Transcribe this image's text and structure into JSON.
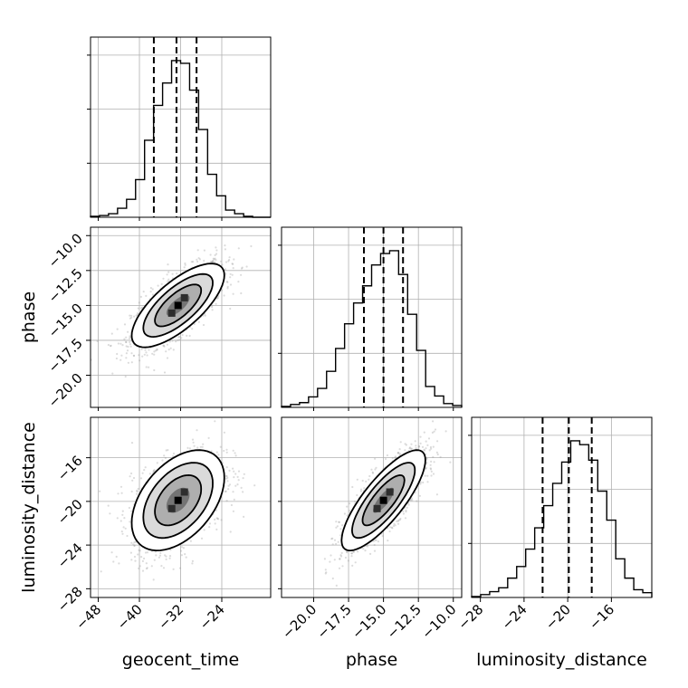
{
  "chart_data": {
    "type": "corner",
    "parameters": [
      "geocent_time",
      "phase",
      "luminosity_distance"
    ],
    "ranges": {
      "geocent_time": [
        -49.5,
        -14.5
      ],
      "phase": [
        -22.3,
        -9.4
      ],
      "luminosity_distance": [
        -28.8,
        -12.3
      ]
    },
    "ticks": {
      "geocent_time": [
        -48,
        -40,
        -32,
        -24
      ],
      "phase_y": [
        -10.0,
        -12.5,
        -15.0,
        -17.5,
        -20.0
      ],
      "phase_x": [
        -20.0,
        -17.5,
        -15.0,
        -12.5,
        -10.0
      ],
      "luminosity_distance": [
        -28,
        -24,
        -20,
        -16
      ]
    },
    "tick_labels": {
      "geocent_time": [
        "−48",
        "−40",
        "−32",
        "−24"
      ],
      "phase_y": [
        "−10.0",
        "−12.5",
        "−15.0",
        "−17.5",
        "−20.0"
      ],
      "phase_x": [
        "−20.0",
        "−17.5",
        "−15.0",
        "−12.5",
        "−10.0"
      ],
      "luminosity_distance": [
        "−28",
        "−24",
        "−20",
        "−16"
      ]
    },
    "axis_labels": {
      "geocent_time": "geocent_time",
      "phase": "phase",
      "luminosity_distance": "luminosity_distance"
    },
    "marginals": {
      "geocent_time": {
        "bin_edges": [
          -49.5,
          -47.75,
          -46,
          -44.25,
          -42.5,
          -40.75,
          -39,
          -37.25,
          -35.5,
          -33.75,
          -32,
          -30.25,
          -28.5,
          -26.75,
          -25,
          -23.25,
          -21.5,
          -19.75,
          -18,
          -16.25,
          -14.5
        ],
        "counts": [
          1,
          2,
          4,
          10,
          20,
          42,
          86,
          125,
          150,
          175,
          172,
          142,
          98,
          48,
          24,
          8,
          4,
          1,
          0,
          0
        ],
        "quantiles": [
          -37.2,
          -32.8,
          -28.9
        ]
      },
      "phase": {
        "bin_edges": [
          -22.3,
          -21.655,
          -21.01,
          -20.365,
          -19.72,
          -19.075,
          -18.43,
          -17.785,
          -17.14,
          -16.495,
          -15.85,
          -15.205,
          -14.56,
          -13.915,
          -13.27,
          -12.625,
          -11.98,
          -11.335,
          -10.69,
          -10.045,
          -9.4
        ],
        "counts": [
          1,
          3,
          5,
          11,
          20,
          38,
          62,
          88,
          110,
          128,
          150,
          162,
          165,
          140,
          98,
          60,
          22,
          12,
          4,
          2
        ],
        "quantiles": [
          -16.4,
          -15.0,
          -13.6
        ]
      },
      "luminosity_distance": {
        "bin_edges": [
          -28.8,
          -27.975,
          -27.15,
          -26.325,
          -25.5,
          -24.675,
          -23.85,
          -23.025,
          -22.2,
          -21.375,
          -20.55,
          -19.725,
          -18.9,
          -18.075,
          -17.25,
          -16.425,
          -15.6,
          -14.775,
          -13.95,
          -13.125,
          -12.3
        ],
        "counts": [
          1,
          3,
          6,
          10,
          20,
          32,
          50,
          72,
          95,
          118,
          140,
          162,
          158,
          142,
          110,
          80,
          40,
          20,
          8,
          5
        ],
        "quantiles": [
          -22.3,
          -19.9,
          -17.8
        ]
      }
    },
    "joint": [
      {
        "x": "geocent_time",
        "y": "phase",
        "center": [
          -32.5,
          -15.0
        ],
        "sigma": [
          4.5,
          1.5
        ],
        "rho": 0.72
      },
      {
        "x": "geocent_time",
        "y": "luminosity_distance",
        "center": [
          -32.5,
          -19.9
        ],
        "sigma": [
          4.5,
          2.3
        ],
        "rho": 0.45
      },
      {
        "x": "phase",
        "y": "luminosity_distance",
        "center": [
          -15.0,
          -19.9
        ],
        "sigma": [
          1.5,
          2.3
        ],
        "rho": 0.8
      }
    ],
    "contour_levels_sigma": [
      0.5,
      1.0,
      1.5,
      2.0
    ],
    "grid": true
  }
}
